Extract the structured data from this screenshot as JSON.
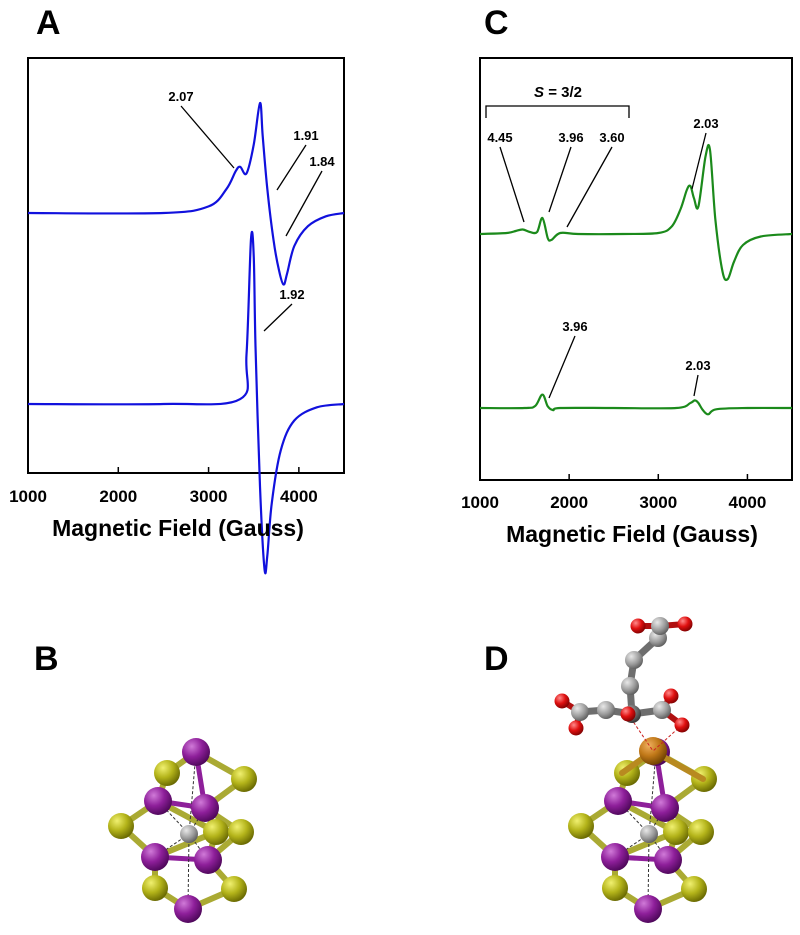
{
  "panels": {
    "A": "A",
    "B": "B",
    "C": "C",
    "D": "D"
  },
  "chart_data": [
    {
      "type": "line",
      "panel": "A",
      "xlabel": "Magnetic Field (Gauss)",
      "ylabel": "",
      "xlim": [
        1000,
        4500
      ],
      "xticks": [
        "1000",
        "2000",
        "3000",
        "4000"
      ],
      "line_color": "#1111dd",
      "series": [
        {
          "x": [
            1000,
            2500,
            3000,
            3200,
            3300,
            3350,
            3420,
            3500,
            3570,
            3600,
            3650,
            3720,
            3780,
            3830,
            3870,
            3950,
            4100,
            4300,
            4500
          ],
          "y": [
            0,
            0,
            0.06,
            0.22,
            0.38,
            0.42,
            0.36,
            0.62,
            1.0,
            0.7,
            0.22,
            -0.25,
            -0.52,
            -0.65,
            -0.55,
            -0.3,
            -0.12,
            -0.03,
            0
          ],
          "annotations": [
            {
              "label": "2.07",
              "x": 3330
            },
            {
              "label": "1.91",
              "x": 3640
            },
            {
              "label": "1.84",
              "x": 3830
            }
          ]
        },
        {
          "x": [
            1000,
            2500,
            3350,
            3420,
            3470,
            3500,
            3520,
            3570,
            3620,
            3650,
            3700,
            3800,
            3950,
            4200,
            4500
          ],
          "y": [
            0,
            0,
            0.03,
            0.3,
            1.0,
            0.9,
            0.35,
            -0.5,
            -1.0,
            -0.92,
            -0.6,
            -0.28,
            -0.1,
            -0.02,
            0
          ],
          "annotations": [
            {
              "label": "1.92",
              "x": 3550
            }
          ]
        }
      ]
    },
    {
      "type": "line",
      "panel": "C",
      "xlabel": "Magnetic Field (Gauss)",
      "ylabel": "",
      "xlim": [
        1000,
        4500
      ],
      "xticks": [
        "1000",
        "2000",
        "3000",
        "4000"
      ],
      "line_color": "#1b8a1b",
      "bracket_label": {
        "italic": "S",
        "rest": " = 3/2"
      },
      "series": [
        {
          "x": [
            1000,
            1300,
            1400,
            1480,
            1560,
            1640,
            1700,
            1760,
            1800,
            1900,
            2100,
            2600,
            3000,
            3150,
            3250,
            3320,
            3360,
            3400,
            3450,
            3530,
            3580,
            3640,
            3720,
            3780,
            3850,
            3950,
            4150,
            4500
          ],
          "y": [
            0,
            0.02,
            0.06,
            0.09,
            0.04,
            0.04,
            0.32,
            -0.08,
            -0.12,
            0.02,
            0,
            0,
            0.02,
            0.15,
            0.5,
            0.88,
            0.96,
            0.72,
            0.55,
            1.55,
            1.68,
            0.3,
            -0.75,
            -0.9,
            -0.55,
            -0.22,
            -0.05,
            0
          ],
          "annotations": [
            {
              "label": "4.45",
              "x": 1500
            },
            {
              "label": "3.96",
              "x": 1730
            },
            {
              "label": "3.60",
              "x": 1960
            },
            {
              "label": "2.03",
              "x": 3380
            }
          ]
        },
        {
          "x": [
            1000,
            1500,
            1620,
            1700,
            1760,
            1820,
            1900,
            2500,
            3200,
            3360,
            3410,
            3450,
            3500,
            3560,
            3650,
            4000,
            4500
          ],
          "y": [
            0,
            0,
            0.05,
            0.32,
            0.04,
            -0.05,
            0,
            0,
            0,
            0.12,
            0.18,
            0.12,
            -0.05,
            -0.15,
            -0.03,
            0,
            0
          ],
          "annotations": [
            {
              "label": "3.96",
              "x": 1730
            },
            {
              "label": "2.03",
              "x": 3410
            }
          ]
        }
      ]
    }
  ]
}
